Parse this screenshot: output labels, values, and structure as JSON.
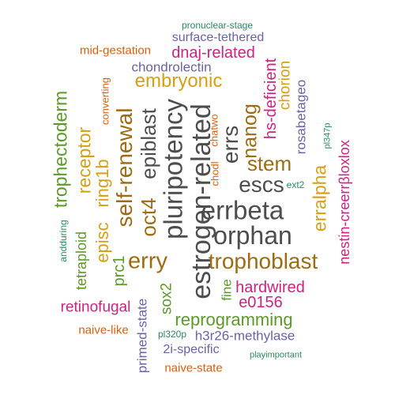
{
  "colors": {
    "gray": "#4d4d4d",
    "brown": "#9c6b14",
    "gold": "#d4a017",
    "green": "#5b9a2a",
    "teal": "#2a8a5e",
    "purple": "#6b62a8",
    "magenta": "#cc2381",
    "orange": "#d95f0e"
  },
  "words": [
    {
      "text": "pronuclear-stage",
      "color": "teal"
    },
    {
      "text": "surface-tethered",
      "color": "purple"
    },
    {
      "text": "mid-gestation",
      "color": "orange"
    },
    {
      "text": "dnaj-related",
      "color": "magenta"
    },
    {
      "text": "chondrolectin",
      "color": "purple"
    },
    {
      "text": "embryonic",
      "color": "gold"
    },
    {
      "text": "converting",
      "color": "orange"
    },
    {
      "text": "trophectoderm",
      "color": "green"
    },
    {
      "text": "receptor",
      "color": "gold"
    },
    {
      "text": "episc",
      "color": "gold"
    },
    {
      "text": "ring1b",
      "color": "gold"
    },
    {
      "text": "self-renewal",
      "color": "brown"
    },
    {
      "text": "epiblast",
      "color": "gray"
    },
    {
      "text": "oct4",
      "color": "brown"
    },
    {
      "text": "pluripotency",
      "color": "gray"
    },
    {
      "text": "estrogen-related",
      "color": "gray"
    },
    {
      "text": "chodl",
      "color": "orange"
    },
    {
      "text": "chatwo",
      "color": "orange"
    },
    {
      "text": "errs",
      "color": "gray"
    },
    {
      "text": "nanog",
      "color": "brown"
    },
    {
      "text": "hs-deficient",
      "color": "magenta"
    },
    {
      "text": "chorion",
      "color": "gold"
    },
    {
      "text": "rosabetageo",
      "color": "purple"
    },
    {
      "text": "pl347p",
      "color": "teal"
    },
    {
      "text": "stem",
      "color": "brown"
    },
    {
      "text": "escs",
      "color": "gray"
    },
    {
      "text": "ext2",
      "color": "teal"
    },
    {
      "text": "errbeta",
      "color": "gray"
    },
    {
      "text": "erralpha",
      "color": "gold"
    },
    {
      "text": "nestin-creerrβloxlox",
      "color": "magenta"
    },
    {
      "text": "orphan",
      "color": "gray"
    },
    {
      "text": "andduring",
      "color": "teal"
    },
    {
      "text": "tetraploid",
      "color": "green"
    },
    {
      "text": "prc1",
      "color": "green"
    },
    {
      "text": "erry",
      "color": "brown"
    },
    {
      "text": "trophoblast",
      "color": "brown"
    },
    {
      "text": "fine",
      "color": "green"
    },
    {
      "text": "hardwired",
      "color": "magenta"
    },
    {
      "text": "e0156",
      "color": "magenta"
    },
    {
      "text": "sox2",
      "color": "green"
    },
    {
      "text": "retinofugal",
      "color": "magenta"
    },
    {
      "text": "primed-state",
      "color": "purple"
    },
    {
      "text": "reprogramming",
      "color": "green"
    },
    {
      "text": "naive-like",
      "color": "orange"
    },
    {
      "text": "pl320p",
      "color": "teal"
    },
    {
      "text": "h3r26-methylase",
      "color": "purple"
    },
    {
      "text": "2i-specific",
      "color": "purple"
    },
    {
      "text": "playimportant",
      "color": "teal"
    },
    {
      "text": "naive-state",
      "color": "orange"
    }
  ]
}
